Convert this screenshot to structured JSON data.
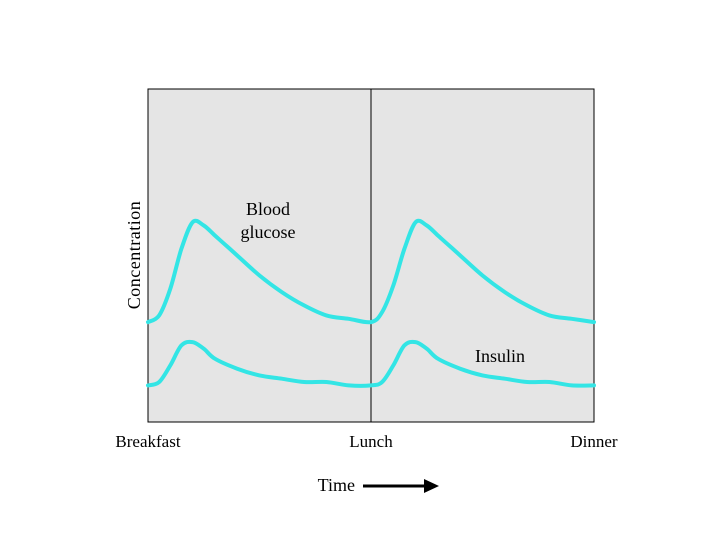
{
  "chart_data": {
    "type": "line",
    "title": "",
    "xlabel": "Time",
    "ylabel": "Concentration",
    "x_ticks": [
      "Breakfast",
      "Lunch",
      "Dinner"
    ],
    "xlim": [
      0,
      2
    ],
    "ylim": [
      0,
      1
    ],
    "grid": false,
    "legend": "none",
    "axis_marker": "→",
    "divider_at": 1,
    "colors": {
      "plot_bg": "#e5e5e5",
      "line": "#33e5e5",
      "frame": "#000000"
    },
    "annotations": [
      {
        "text_lines": [
          "Blood",
          "glucose"
        ],
        "series": "glucose"
      },
      {
        "text_lines": [
          "Insulin"
        ],
        "series": "insulin"
      }
    ],
    "series": [
      {
        "key": "glucose",
        "x": [
          0,
          0.05,
          0.1,
          0.15,
          0.2,
          0.25,
          0.3,
          0.35,
          0.4,
          0.5,
          0.6,
          0.7,
          0.8,
          0.9,
          1.0,
          1.05,
          1.1,
          1.15,
          1.2,
          1.25,
          1.3,
          1.35,
          1.4,
          1.5,
          1.6,
          1.7,
          1.8,
          1.9,
          2.0
        ],
        "y": [
          0.3,
          0.32,
          0.4,
          0.52,
          0.6,
          0.59,
          0.56,
          0.53,
          0.5,
          0.44,
          0.39,
          0.35,
          0.32,
          0.31,
          0.3,
          0.33,
          0.41,
          0.52,
          0.6,
          0.59,
          0.56,
          0.53,
          0.5,
          0.44,
          0.39,
          0.35,
          0.32,
          0.31,
          0.3
        ]
      },
      {
        "key": "insulin",
        "x": [
          0,
          0.05,
          0.1,
          0.15,
          0.2,
          0.25,
          0.3,
          0.4,
          0.5,
          0.6,
          0.7,
          0.8,
          0.9,
          1.0,
          1.05,
          1.1,
          1.15,
          1.2,
          1.25,
          1.3,
          1.4,
          1.5,
          1.6,
          1.7,
          1.8,
          1.9,
          2.0
        ],
        "y": [
          0.11,
          0.12,
          0.17,
          0.23,
          0.24,
          0.22,
          0.19,
          0.16,
          0.14,
          0.13,
          0.12,
          0.12,
          0.11,
          0.11,
          0.12,
          0.17,
          0.23,
          0.24,
          0.22,
          0.19,
          0.16,
          0.14,
          0.13,
          0.12,
          0.12,
          0.11,
          0.11
        ]
      }
    ]
  }
}
